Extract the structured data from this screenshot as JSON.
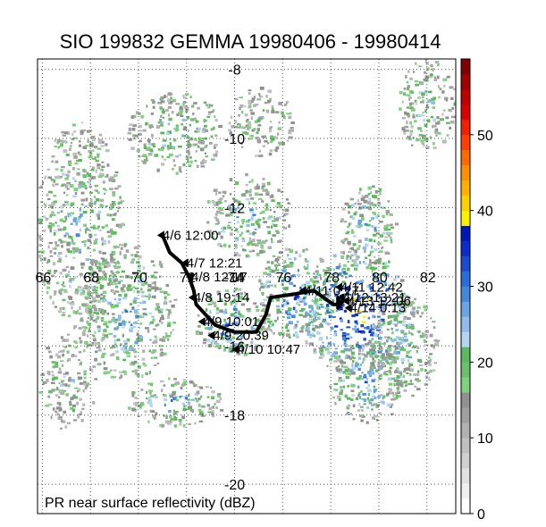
{
  "title": "SIO 199832 GEMMA 19980406 - 19980414",
  "footer_label": "PR near surface reflectivity (dBZ)",
  "lon_labels": [
    "66",
    "68",
    "70",
    "72",
    "74",
    "76",
    "78",
    "80",
    "82"
  ],
  "lat_labels": [
    "-8",
    "-10",
    "-12",
    "-14",
    "-16",
    "-18",
    "-20"
  ],
  "colorbar": {
    "labels": [
      "0",
      "10",
      "20",
      "30",
      "40",
      "50"
    ],
    "range": [
      0,
      60
    ]
  },
  "storm_track": {
    "points": [
      {
        "lon": 71.0,
        "lat": -12.8
      },
      {
        "lon": 71.3,
        "lat": -13.3
      },
      {
        "lon": 71.8,
        "lat": -13.6
      },
      {
        "lon": 72.1,
        "lat": -14.0
      },
      {
        "lon": 72.3,
        "lat": -14.4
      },
      {
        "lon": 72.4,
        "lat": -14.8
      },
      {
        "lon": 72.8,
        "lat": -15.1
      },
      {
        "lon": 73.2,
        "lat": -15.4
      },
      {
        "lon": 74.0,
        "lat": -15.6
      },
      {
        "lon": 74.9,
        "lat": -15.6
      },
      {
        "lon": 75.3,
        "lat": -15.1
      },
      {
        "lon": 75.5,
        "lat": -14.6
      },
      {
        "lon": 76.5,
        "lat": -14.5
      },
      {
        "lon": 77.3,
        "lat": -14.4
      },
      {
        "lon": 78.1,
        "lat": -14.8
      },
      {
        "lon": 78.4,
        "lat": -14.8
      },
      {
        "lon": 78.3,
        "lat": -14.6
      },
      {
        "lon": 78.3,
        "lat": -14.9
      },
      {
        "lon": 78.5,
        "lat": -14.7
      }
    ],
    "labels": [
      {
        "text": "4/6 12:00",
        "lon": 71.0,
        "lat": -12.8
      },
      {
        "text": "4/7 12:21",
        "lon": 72.0,
        "lat": -13.6
      },
      {
        "text": "4/8 12:17",
        "lon": 72.2,
        "lat": -14.0
      },
      {
        "text": "4/8 19:14",
        "lon": 72.3,
        "lat": -14.6
      },
      {
        "text": "4/9 10:01",
        "lon": 72.7,
        "lat": -15.3
      },
      {
        "text": "4/9 20:39",
        "lon": 73.1,
        "lat": -15.7
      },
      {
        "text": "4/10 10:47",
        "lon": 74.1,
        "lat": -16.1
      },
      {
        "text": "4/11 0:27",
        "lon": 76.9,
        "lat": -14.4
      },
      {
        "text": "4/11 12:42",
        "lon": 78.4,
        "lat": -14.3
      },
      {
        "text": "4/12 13:21",
        "lon": 78.5,
        "lat": -14.6
      },
      {
        "text": "4/13 12:06",
        "lon": 78.7,
        "lat": -14.7
      },
      {
        "text": "4/14 0:13",
        "lon": 78.8,
        "lat": -14.9
      }
    ]
  }
}
